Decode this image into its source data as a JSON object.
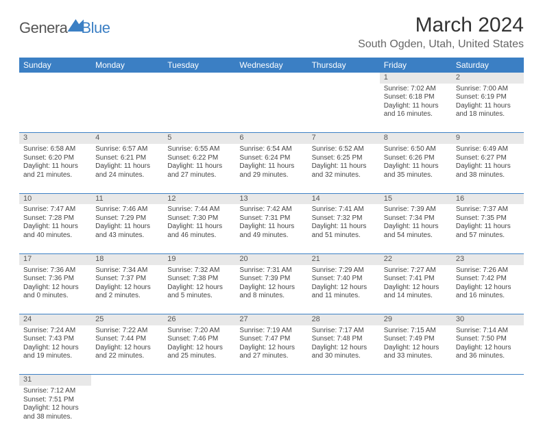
{
  "logo": {
    "part1": "Genera",
    "part2": "Blue"
  },
  "title": "March 2024",
  "location": "South Ogden, Utah, United States",
  "colors": {
    "header_bg": "#3b7fc4",
    "header_text": "#ffffff",
    "daynum_bg": "#e8e8e8",
    "row_border": "#3b7fc4",
    "body_text": "#444444",
    "title_text": "#333333",
    "location_text": "#666666"
  },
  "fonts": {
    "title_size": 30,
    "location_size": 16,
    "dayhead_size": 12,
    "cell_size": 10
  },
  "weekdays": [
    "Sunday",
    "Monday",
    "Tuesday",
    "Wednesday",
    "Thursday",
    "Friday",
    "Saturday"
  ],
  "weeks": [
    [
      null,
      null,
      null,
      null,
      null,
      {
        "n": "1",
        "sr": "Sunrise: 7:02 AM",
        "ss": "Sunset: 6:18 PM",
        "d1": "Daylight: 11 hours",
        "d2": "and 16 minutes."
      },
      {
        "n": "2",
        "sr": "Sunrise: 7:00 AM",
        "ss": "Sunset: 6:19 PM",
        "d1": "Daylight: 11 hours",
        "d2": "and 18 minutes."
      }
    ],
    [
      {
        "n": "3",
        "sr": "Sunrise: 6:58 AM",
        "ss": "Sunset: 6:20 PM",
        "d1": "Daylight: 11 hours",
        "d2": "and 21 minutes."
      },
      {
        "n": "4",
        "sr": "Sunrise: 6:57 AM",
        "ss": "Sunset: 6:21 PM",
        "d1": "Daylight: 11 hours",
        "d2": "and 24 minutes."
      },
      {
        "n": "5",
        "sr": "Sunrise: 6:55 AM",
        "ss": "Sunset: 6:22 PM",
        "d1": "Daylight: 11 hours",
        "d2": "and 27 minutes."
      },
      {
        "n": "6",
        "sr": "Sunrise: 6:54 AM",
        "ss": "Sunset: 6:24 PM",
        "d1": "Daylight: 11 hours",
        "d2": "and 29 minutes."
      },
      {
        "n": "7",
        "sr": "Sunrise: 6:52 AM",
        "ss": "Sunset: 6:25 PM",
        "d1": "Daylight: 11 hours",
        "d2": "and 32 minutes."
      },
      {
        "n": "8",
        "sr": "Sunrise: 6:50 AM",
        "ss": "Sunset: 6:26 PM",
        "d1": "Daylight: 11 hours",
        "d2": "and 35 minutes."
      },
      {
        "n": "9",
        "sr": "Sunrise: 6:49 AM",
        "ss": "Sunset: 6:27 PM",
        "d1": "Daylight: 11 hours",
        "d2": "and 38 minutes."
      }
    ],
    [
      {
        "n": "10",
        "sr": "Sunrise: 7:47 AM",
        "ss": "Sunset: 7:28 PM",
        "d1": "Daylight: 11 hours",
        "d2": "and 40 minutes."
      },
      {
        "n": "11",
        "sr": "Sunrise: 7:46 AM",
        "ss": "Sunset: 7:29 PM",
        "d1": "Daylight: 11 hours",
        "d2": "and 43 minutes."
      },
      {
        "n": "12",
        "sr": "Sunrise: 7:44 AM",
        "ss": "Sunset: 7:30 PM",
        "d1": "Daylight: 11 hours",
        "d2": "and 46 minutes."
      },
      {
        "n": "13",
        "sr": "Sunrise: 7:42 AM",
        "ss": "Sunset: 7:31 PM",
        "d1": "Daylight: 11 hours",
        "d2": "and 49 minutes."
      },
      {
        "n": "14",
        "sr": "Sunrise: 7:41 AM",
        "ss": "Sunset: 7:32 PM",
        "d1": "Daylight: 11 hours",
        "d2": "and 51 minutes."
      },
      {
        "n": "15",
        "sr": "Sunrise: 7:39 AM",
        "ss": "Sunset: 7:34 PM",
        "d1": "Daylight: 11 hours",
        "d2": "and 54 minutes."
      },
      {
        "n": "16",
        "sr": "Sunrise: 7:37 AM",
        "ss": "Sunset: 7:35 PM",
        "d1": "Daylight: 11 hours",
        "d2": "and 57 minutes."
      }
    ],
    [
      {
        "n": "17",
        "sr": "Sunrise: 7:36 AM",
        "ss": "Sunset: 7:36 PM",
        "d1": "Daylight: 12 hours",
        "d2": "and 0 minutes."
      },
      {
        "n": "18",
        "sr": "Sunrise: 7:34 AM",
        "ss": "Sunset: 7:37 PM",
        "d1": "Daylight: 12 hours",
        "d2": "and 2 minutes."
      },
      {
        "n": "19",
        "sr": "Sunrise: 7:32 AM",
        "ss": "Sunset: 7:38 PM",
        "d1": "Daylight: 12 hours",
        "d2": "and 5 minutes."
      },
      {
        "n": "20",
        "sr": "Sunrise: 7:31 AM",
        "ss": "Sunset: 7:39 PM",
        "d1": "Daylight: 12 hours",
        "d2": "and 8 minutes."
      },
      {
        "n": "21",
        "sr": "Sunrise: 7:29 AM",
        "ss": "Sunset: 7:40 PM",
        "d1": "Daylight: 12 hours",
        "d2": "and 11 minutes."
      },
      {
        "n": "22",
        "sr": "Sunrise: 7:27 AM",
        "ss": "Sunset: 7:41 PM",
        "d1": "Daylight: 12 hours",
        "d2": "and 14 minutes."
      },
      {
        "n": "23",
        "sr": "Sunrise: 7:26 AM",
        "ss": "Sunset: 7:42 PM",
        "d1": "Daylight: 12 hours",
        "d2": "and 16 minutes."
      }
    ],
    [
      {
        "n": "24",
        "sr": "Sunrise: 7:24 AM",
        "ss": "Sunset: 7:43 PM",
        "d1": "Daylight: 12 hours",
        "d2": "and 19 minutes."
      },
      {
        "n": "25",
        "sr": "Sunrise: 7:22 AM",
        "ss": "Sunset: 7:44 PM",
        "d1": "Daylight: 12 hours",
        "d2": "and 22 minutes."
      },
      {
        "n": "26",
        "sr": "Sunrise: 7:20 AM",
        "ss": "Sunset: 7:46 PM",
        "d1": "Daylight: 12 hours",
        "d2": "and 25 minutes."
      },
      {
        "n": "27",
        "sr": "Sunrise: 7:19 AM",
        "ss": "Sunset: 7:47 PM",
        "d1": "Daylight: 12 hours",
        "d2": "and 27 minutes."
      },
      {
        "n": "28",
        "sr": "Sunrise: 7:17 AM",
        "ss": "Sunset: 7:48 PM",
        "d1": "Daylight: 12 hours",
        "d2": "and 30 minutes."
      },
      {
        "n": "29",
        "sr": "Sunrise: 7:15 AM",
        "ss": "Sunset: 7:49 PM",
        "d1": "Daylight: 12 hours",
        "d2": "and 33 minutes."
      },
      {
        "n": "30",
        "sr": "Sunrise: 7:14 AM",
        "ss": "Sunset: 7:50 PM",
        "d1": "Daylight: 12 hours",
        "d2": "and 36 minutes."
      }
    ],
    [
      {
        "n": "31",
        "sr": "Sunrise: 7:12 AM",
        "ss": "Sunset: 7:51 PM",
        "d1": "Daylight: 12 hours",
        "d2": "and 38 minutes."
      },
      null,
      null,
      null,
      null,
      null,
      null
    ]
  ]
}
